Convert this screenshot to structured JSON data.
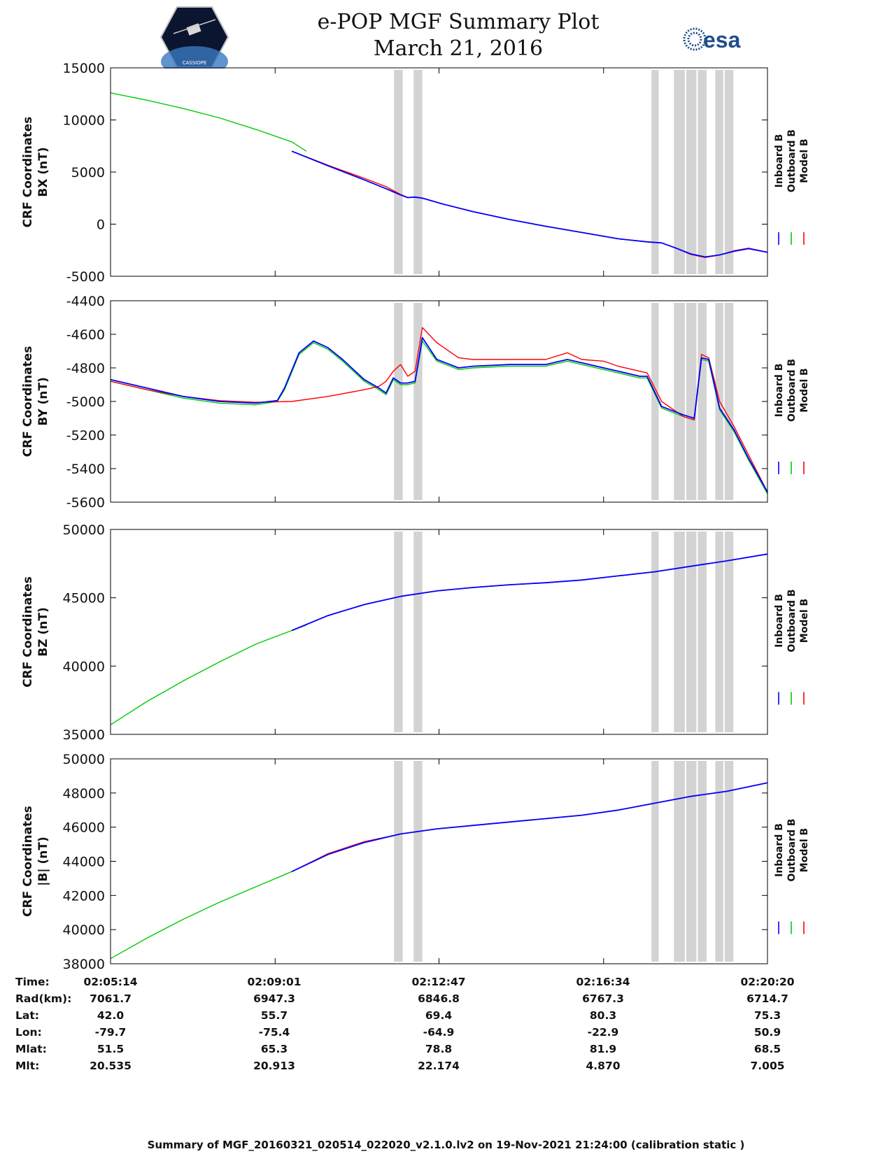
{
  "header": {
    "title": "e-POP MGF Summary Plot",
    "date": "March 21, 2016",
    "esa_text": "esa",
    "mission_logo_name": "e-POP / CASSIOPE mission logo",
    "mission_logo_text": "CASSIOPE"
  },
  "legend": {
    "entries": [
      {
        "name": "Inboard B",
        "color": "#0000ff"
      },
      {
        "name": "Outboard B",
        "color": "#00cc00"
      },
      {
        "name": "Model B",
        "color": "#ff0000"
      }
    ]
  },
  "colors": {
    "inboard": "#0000ff",
    "outboard": "#00cc00",
    "model": "#ff0000",
    "gap_band": "#d3d3d3"
  },
  "chart_data": [
    {
      "type": "line",
      "ylabel_line1": "CRF Coordinates",
      "ylabel_line2": "BX (nT)",
      "ylim": [
        -5000,
        15000
      ],
      "yticks": [
        15000,
        10000,
        5000,
        0,
        -5000
      ],
      "xlim": [
        0,
        906
      ],
      "xticks": [
        0,
        227,
        453,
        680,
        906
      ],
      "gray_bands": [
        [
          391,
          403
        ],
        [
          418,
          430
        ],
        [
          746,
          756
        ],
        [
          777,
          792
        ],
        [
          794,
          808
        ],
        [
          810,
          822
        ],
        [
          834,
          845
        ],
        [
          847,
          859
        ]
      ],
      "series": [
        {
          "name": "Outboard B",
          "x": [
            0,
            50,
            100,
            150,
            200,
            250,
            270
          ],
          "y": [
            12600,
            11900,
            11100,
            10200,
            9100,
            7900,
            7000
          ]
        },
        {
          "name": "Inboard B",
          "x": [
            250,
            300,
            350,
            380,
            400,
            410,
            420,
            430,
            460,
            500,
            550,
            600,
            650,
            700,
            740,
            760,
            780,
            800,
            820,
            840,
            860,
            880,
            906
          ],
          "y": [
            7000,
            5600,
            4250,
            3400,
            2800,
            2550,
            2600,
            2500,
            1900,
            1200,
            450,
            -200,
            -800,
            -1400,
            -1700,
            -1800,
            -2300,
            -2850,
            -3150,
            -2950,
            -2600,
            -2350,
            -2700
          ]
        },
        {
          "name": "Model B",
          "x": [
            250,
            300,
            350,
            380,
            400,
            410,
            420,
            430,
            460,
            500,
            550,
            600,
            650,
            700,
            740,
            760,
            780,
            800,
            820,
            840,
            860,
            880,
            906
          ],
          "y": [
            7000,
            5650,
            4400,
            3600,
            2850,
            2550,
            2600,
            2500,
            1900,
            1200,
            450,
            -200,
            -800,
            -1400,
            -1700,
            -1800,
            -2300,
            -2900,
            -3200,
            -2950,
            -2550,
            -2300,
            -2700
          ]
        }
      ]
    },
    {
      "type": "line",
      "ylabel_line1": "CRF Coordinates",
      "ylabel_line2": "BY (nT)",
      "ylim": [
        -5600,
        -4400
      ],
      "yticks": [
        -4400,
        -4600,
        -4800,
        -5000,
        -5200,
        -5400,
        -5600
      ],
      "xlim": [
        0,
        906
      ],
      "xticks": [
        0,
        227,
        453,
        680,
        906
      ],
      "gray_bands": [
        [
          391,
          403
        ],
        [
          418,
          430
        ],
        [
          746,
          756
        ],
        [
          777,
          792
        ],
        [
          794,
          808
        ],
        [
          810,
          822
        ],
        [
          834,
          845
        ],
        [
          847,
          859
        ]
      ],
      "series": [
        {
          "name": "Outboard B",
          "x": [
            0,
            50,
            100,
            150,
            200,
            230,
            240,
            260,
            280,
            300,
            320,
            350,
            370,
            380,
            390,
            400,
            410,
            420,
            430,
            450,
            480,
            500,
            550,
            600,
            630,
            650,
            680,
            700,
            730,
            740,
            760,
            790,
            805,
            815,
            825,
            840,
            860,
            880,
            906
          ],
          "y": [
            -4880,
            -4930,
            -4980,
            -5010,
            -5020,
            -5000,
            -4930,
            -4720,
            -4650,
            -4690,
            -4760,
            -4880,
            -4930,
            -4960,
            -4870,
            -4900,
            -4900,
            -4890,
            -4640,
            -4760,
            -4810,
            -4800,
            -4790,
            -4790,
            -4760,
            -4780,
            -4810,
            -4830,
            -4860,
            -4860,
            -5040,
            -5090,
            -5110,
            -4750,
            -4760,
            -5050,
            -5180,
            -5350,
            -5550
          ]
        },
        {
          "name": "Inboard B",
          "x": [
            0,
            50,
            100,
            150,
            200,
            230,
            240,
            260,
            280,
            300,
            320,
            350,
            370,
            380,
            390,
            400,
            410,
            420,
            430,
            450,
            480,
            500,
            550,
            600,
            630,
            650,
            680,
            700,
            730,
            740,
            760,
            790,
            805,
            815,
            825,
            840,
            860,
            880,
            906
          ],
          "y": [
            -4870,
            -4920,
            -4970,
            -5000,
            -5010,
            -4995,
            -4920,
            -4710,
            -4640,
            -4680,
            -4750,
            -4870,
            -4920,
            -4950,
            -4860,
            -4890,
            -4890,
            -4880,
            -4620,
            -4750,
            -4800,
            -4790,
            -4780,
            -4780,
            -4750,
            -4770,
            -4800,
            -4820,
            -4850,
            -4850,
            -5030,
            -5080,
            -5100,
            -4740,
            -4750,
            -5040,
            -5170,
            -5340,
            -5540
          ]
        },
        {
          "name": "Model B",
          "x": [
            0,
            50,
            100,
            150,
            200,
            250,
            300,
            350,
            370,
            380,
            390,
            400,
            410,
            420,
            430,
            450,
            480,
            500,
            550,
            600,
            630,
            650,
            680,
            700,
            730,
            740,
            760,
            790,
            805,
            815,
            825,
            840,
            860,
            880,
            906
          ],
          "y": [
            -4880,
            -4930,
            -4970,
            -4995,
            -5005,
            -5000,
            -4970,
            -4930,
            -4910,
            -4880,
            -4820,
            -4780,
            -4850,
            -4820,
            -4560,
            -4650,
            -4740,
            -4750,
            -4750,
            -4750,
            -4710,
            -4750,
            -4760,
            -4790,
            -4820,
            -4830,
            -5000,
            -5090,
            -5110,
            -4720,
            -4740,
            -5000,
            -5150,
            -5320,
            -5540
          ]
        }
      ]
    },
    {
      "type": "line",
      "ylabel_line1": "CRF Coordinates",
      "ylabel_line2": "BZ (nT)",
      "ylim": [
        35000,
        50000
      ],
      "yticks": [
        50000,
        45000,
        40000,
        35000
      ],
      "xlim": [
        0,
        906
      ],
      "xticks": [
        0,
        227,
        453,
        680,
        906
      ],
      "gray_bands": [
        [
          391,
          403
        ],
        [
          418,
          430
        ],
        [
          746,
          756
        ],
        [
          777,
          792
        ],
        [
          794,
          808
        ],
        [
          810,
          822
        ],
        [
          834,
          845
        ],
        [
          847,
          859
        ]
      ],
      "series": [
        {
          "name": "Outboard B",
          "x": [
            0,
            50,
            100,
            150,
            200,
            250,
            270
          ],
          "y": [
            35700,
            37400,
            38900,
            40300,
            41600,
            42600,
            43000
          ]
        },
        {
          "name": "Inboard B",
          "x": [
            250,
            300,
            350,
            400,
            450,
            500,
            550,
            600,
            650,
            700,
            750,
            800,
            850,
            906
          ],
          "y": [
            42600,
            43700,
            44500,
            45100,
            45500,
            45750,
            45950,
            46100,
            46300,
            46600,
            46900,
            47300,
            47700,
            48200
          ]
        },
        {
          "name": "Model B",
          "x": [
            250,
            300,
            350,
            400,
            450,
            500,
            550,
            600,
            650,
            700,
            750,
            800,
            850,
            906
          ],
          "y": [
            42600,
            43700,
            44500,
            45100,
            45500,
            45750,
            45950,
            46100,
            46300,
            46600,
            46900,
            47300,
            47700,
            48200
          ]
        }
      ]
    },
    {
      "type": "line",
      "ylabel_line1": "CRF Coordinates",
      "ylabel_line2": "|B| (nT)",
      "ylim": [
        38000,
        50000
      ],
      "yticks": [
        50000,
        48000,
        46000,
        44000,
        42000,
        40000,
        38000
      ],
      "xlim": [
        0,
        906
      ],
      "xticks": [
        0,
        227,
        453,
        680,
        906
      ],
      "gray_bands": [
        [
          391,
          403
        ],
        [
          418,
          430
        ],
        [
          746,
          756
        ],
        [
          777,
          792
        ],
        [
          794,
          808
        ],
        [
          810,
          822
        ],
        [
          834,
          845
        ],
        [
          847,
          859
        ]
      ],
      "series": [
        {
          "name": "Outboard B",
          "x": [
            0,
            50,
            100,
            150,
            200,
            250,
            270
          ],
          "y": [
            38300,
            39500,
            40600,
            41600,
            42500,
            43400,
            43800
          ]
        },
        {
          "name": "Inboard B",
          "x": [
            250,
            300,
            350,
            400,
            450,
            500,
            550,
            600,
            650,
            700,
            750,
            800,
            850,
            906
          ],
          "y": [
            43400,
            44400,
            45100,
            45600,
            45900,
            46100,
            46300,
            46500,
            46700,
            47000,
            47400,
            47800,
            48100,
            48600
          ]
        },
        {
          "name": "Model B",
          "x": [
            250,
            300,
            350,
            400,
            450,
            500,
            550,
            600,
            650,
            700,
            750,
            800,
            850,
            906
          ],
          "y": [
            43400,
            44450,
            45150,
            45600,
            45900,
            46100,
            46300,
            46500,
            46700,
            47000,
            47400,
            47800,
            48100,
            48600
          ]
        }
      ]
    }
  ],
  "info_table": {
    "labels": [
      "Time:",
      "Rad(km):",
      "Lat:",
      "Lon:",
      "Mlat:",
      "Mlt:"
    ],
    "columns": [
      [
        "02:05:14",
        "7061.7",
        "42.0",
        "-79.7",
        "51.5",
        "20.535"
      ],
      [
        "02:09:01",
        "6947.3",
        "55.7",
        "-75.4",
        "65.3",
        "20.913"
      ],
      [
        "02:12:47",
        "6846.8",
        "69.4",
        "-64.9",
        "78.8",
        "22.174"
      ],
      [
        "02:16:34",
        "6767.3",
        "80.3",
        "-22.9",
        "81.9",
        "4.870"
      ],
      [
        "02:20:20",
        "6714.7",
        "75.3",
        "50.9",
        "68.5",
        "7.005"
      ]
    ]
  },
  "footer": "Summary of MGF_20160321_020514_022020_v2.1.0.lv2 on 19-Nov-2021 21:24:00 (calibration static )"
}
